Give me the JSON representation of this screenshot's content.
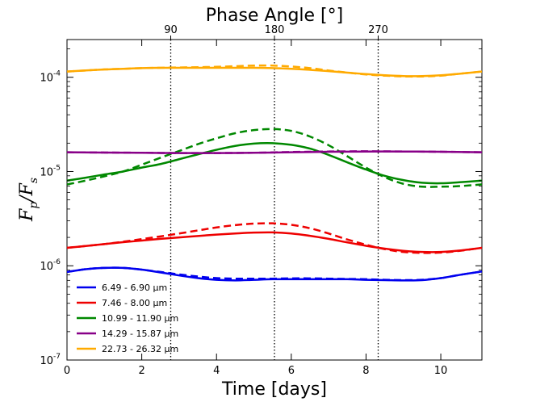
{
  "chart_data": {
    "type": "line",
    "title": "Phase Angle [°]",
    "xlabel": "Time [days]",
    "ylabel": "F_p / F_s",
    "ylabel_parts": {
      "main": "F",
      "sub1": "p",
      "sep": "/",
      "main2": "F",
      "sub2": "s"
    },
    "xlim": [
      0,
      11.1
    ],
    "ylim_log10": [
      -7,
      -3.6
    ],
    "yscale": "log",
    "x_ticks": [
      0,
      2,
      4,
      6,
      8,
      10
    ],
    "x_tick_labels": [
      "0",
      "2",
      "4",
      "6",
      "8",
      "10"
    ],
    "y_ticks_log10": [
      -7,
      -6,
      -5,
      -4
    ],
    "y_tick_labels": [
      {
        "base": "10",
        "exp": "-7"
      },
      {
        "base": "10",
        "exp": "-6"
      },
      {
        "base": "10",
        "exp": "-5"
      },
      {
        "base": "10",
        "exp": "-4"
      }
    ],
    "top_axis": {
      "ticks_days": [
        2.775,
        5.55,
        8.325
      ],
      "tick_labels": [
        "90",
        "180",
        "270"
      ]
    },
    "vlines_days": [
      2.775,
      5.55,
      8.325
    ],
    "legend_position": "lower-left",
    "series": [
      {
        "name": "6.49 - 6.90 μm",
        "color": "#0000ee",
        "solid": [
          [
            0,
            8.6e-07
          ],
          [
            0.5,
            9.2e-07
          ],
          [
            1,
            9.5e-07
          ],
          [
            1.5,
            9.5e-07
          ],
          [
            2,
            9.1e-07
          ],
          [
            2.5,
            8.5e-07
          ],
          [
            3,
            7.9e-07
          ],
          [
            3.5,
            7.4e-07
          ],
          [
            4,
            7.1e-07
          ],
          [
            4.5,
            7e-07
          ],
          [
            5,
            7.1e-07
          ],
          [
            5.5,
            7.2e-07
          ],
          [
            6,
            7.2e-07
          ],
          [
            6.5,
            7.2e-07
          ],
          [
            7,
            7.2e-07
          ],
          [
            7.5,
            7.2e-07
          ],
          [
            8,
            7.1e-07
          ],
          [
            8.5,
            7.05e-07
          ],
          [
            9,
            7e-07
          ],
          [
            9.5,
            7.05e-07
          ],
          [
            10,
            7.4e-07
          ],
          [
            10.5,
            8e-07
          ],
          [
            11.1,
            8.7e-07
          ]
        ],
        "dashed": [
          [
            0,
            8.6e-07
          ],
          [
            0.5,
            9.2e-07
          ],
          [
            1,
            9.5e-07
          ],
          [
            1.5,
            9.5e-07
          ],
          [
            2,
            9.1e-07
          ],
          [
            2.5,
            8.6e-07
          ],
          [
            3,
            8.1e-07
          ],
          [
            3.5,
            7.7e-07
          ],
          [
            4,
            7.4e-07
          ],
          [
            4.5,
            7.3e-07
          ],
          [
            5,
            7.3e-07
          ],
          [
            5.5,
            7.3e-07
          ],
          [
            6,
            7.35e-07
          ],
          [
            6.5,
            7.35e-07
          ],
          [
            7,
            7.3e-07
          ],
          [
            7.5,
            7.25e-07
          ],
          [
            8,
            7.2e-07
          ],
          [
            8.5,
            7.1e-07
          ],
          [
            9,
            7.05e-07
          ],
          [
            9.5,
            7.1e-07
          ],
          [
            10,
            7.4e-07
          ],
          [
            10.5,
            8e-07
          ],
          [
            11.1,
            8.7e-07
          ]
        ]
      },
      {
        "name": "7.46 - 8.00 μm",
        "color": "#ee0000",
        "solid": [
          [
            0,
            1.55e-06
          ],
          [
            0.5,
            1.62e-06
          ],
          [
            1,
            1.7e-06
          ],
          [
            1.5,
            1.78e-06
          ],
          [
            2,
            1.85e-06
          ],
          [
            2.5,
            1.93e-06
          ],
          [
            3,
            2e-06
          ],
          [
            3.5,
            2.07e-06
          ],
          [
            4,
            2.14e-06
          ],
          [
            4.5,
            2.2e-06
          ],
          [
            5,
            2.25e-06
          ],
          [
            5.5,
            2.26e-06
          ],
          [
            6,
            2.2e-06
          ],
          [
            6.5,
            2.08e-06
          ],
          [
            7,
            1.93e-06
          ],
          [
            7.5,
            1.77e-06
          ],
          [
            8,
            1.63e-06
          ],
          [
            8.5,
            1.52e-06
          ],
          [
            9,
            1.44e-06
          ],
          [
            9.5,
            1.4e-06
          ],
          [
            10,
            1.4e-06
          ],
          [
            10.5,
            1.45e-06
          ],
          [
            11.1,
            1.55e-06
          ]
        ],
        "dashed": [
          [
            0,
            1.55e-06
          ],
          [
            0.5,
            1.62e-06
          ],
          [
            1,
            1.7e-06
          ],
          [
            1.5,
            1.8e-06
          ],
          [
            2,
            1.92e-06
          ],
          [
            2.5,
            2.05e-06
          ],
          [
            3,
            2.2e-06
          ],
          [
            3.5,
            2.37e-06
          ],
          [
            4,
            2.55e-06
          ],
          [
            4.5,
            2.7e-06
          ],
          [
            5,
            2.8e-06
          ],
          [
            5.5,
            2.82e-06
          ],
          [
            6,
            2.72e-06
          ],
          [
            6.5,
            2.5e-06
          ],
          [
            7,
            2.2e-06
          ],
          [
            7.5,
            1.9e-06
          ],
          [
            8,
            1.67e-06
          ],
          [
            8.5,
            1.5e-06
          ],
          [
            9,
            1.4e-06
          ],
          [
            9.5,
            1.37e-06
          ],
          [
            10,
            1.38e-06
          ],
          [
            10.5,
            1.44e-06
          ],
          [
            11.1,
            1.55e-06
          ]
        ]
      },
      {
        "name": "10.99 - 11.90 μm",
        "color": "#008800",
        "solid": [
          [
            0,
            8e-06
          ],
          [
            0.5,
            8.6e-06
          ],
          [
            1,
            9.3e-06
          ],
          [
            1.5,
            1e-05
          ],
          [
            2,
            1.1e-05
          ],
          [
            2.5,
            1.2e-05
          ],
          [
            3,
            1.35e-05
          ],
          [
            3.5,
            1.52e-05
          ],
          [
            4,
            1.7e-05
          ],
          [
            4.5,
            1.87e-05
          ],
          [
            5,
            1.98e-05
          ],
          [
            5.5,
            2e-05
          ],
          [
            6,
            1.92e-05
          ],
          [
            6.5,
            1.75e-05
          ],
          [
            7,
            1.5e-05
          ],
          [
            7.5,
            1.25e-05
          ],
          [
            8,
            1.05e-05
          ],
          [
            8.5,
            9e-06
          ],
          [
            9,
            8.1e-06
          ],
          [
            9.5,
            7.6e-06
          ],
          [
            10,
            7.5e-06
          ],
          [
            10.5,
            7.7e-06
          ],
          [
            11.1,
            8e-06
          ]
        ],
        "dashed": [
          [
            0,
            7.3e-06
          ],
          [
            0.5,
            8e-06
          ],
          [
            1,
            8.9e-06
          ],
          [
            1.5,
            1e-05
          ],
          [
            2,
            1.18e-05
          ],
          [
            2.5,
            1.4e-05
          ],
          [
            3,
            1.65e-05
          ],
          [
            3.5,
            1.95e-05
          ],
          [
            4,
            2.25e-05
          ],
          [
            4.5,
            2.55e-05
          ],
          [
            5,
            2.75e-05
          ],
          [
            5.5,
            2.82e-05
          ],
          [
            6,
            2.7e-05
          ],
          [
            6.5,
            2.35e-05
          ],
          [
            7,
            1.9e-05
          ],
          [
            7.5,
            1.45e-05
          ],
          [
            8,
            1.1e-05
          ],
          [
            8.5,
            8.7e-06
          ],
          [
            9,
            7.4e-06
          ],
          [
            9.5,
            6.9e-06
          ],
          [
            10,
            6.9e-06
          ],
          [
            10.5,
            7e-06
          ],
          [
            11.1,
            7.3e-06
          ]
        ]
      },
      {
        "name": "14.29 - 15.87 μm",
        "color": "#880088",
        "solid": [
          [
            0,
            1.6e-05
          ],
          [
            1,
            1.59e-05
          ],
          [
            2,
            1.58e-05
          ],
          [
            3,
            1.57e-05
          ],
          [
            4,
            1.57e-05
          ],
          [
            5,
            1.58e-05
          ],
          [
            6,
            1.6e-05
          ],
          [
            7,
            1.62e-05
          ],
          [
            8,
            1.63e-05
          ],
          [
            9,
            1.63e-05
          ],
          [
            10,
            1.62e-05
          ],
          [
            11.1,
            1.6e-05
          ]
        ],
        "dashed": [
          [
            0,
            1.6e-05
          ],
          [
            1,
            1.59e-05
          ],
          [
            2,
            1.58e-05
          ],
          [
            3,
            1.57e-05
          ],
          [
            4,
            1.57e-05
          ],
          [
            5,
            1.58e-05
          ],
          [
            6,
            1.61e-05
          ],
          [
            7,
            1.63e-05
          ],
          [
            8,
            1.64e-05
          ],
          [
            9,
            1.63e-05
          ],
          [
            10,
            1.62e-05
          ],
          [
            11.1,
            1.6e-05
          ]
        ]
      },
      {
        "name": "22.73 - 26.32 μm",
        "color": "#ffaa00",
        "solid": [
          [
            0,
            0.000115
          ],
          [
            0.5,
            0.000118
          ],
          [
            1,
            0.000121
          ],
          [
            1.5,
            0.000123
          ],
          [
            2,
            0.000125
          ],
          [
            2.5,
            0.000126
          ],
          [
            3,
            0.000126
          ],
          [
            3.5,
            0.000126
          ],
          [
            4,
            0.000126
          ],
          [
            4.5,
            0.000126
          ],
          [
            5,
            0.000126
          ],
          [
            5.5,
            0.000125
          ],
          [
            6,
            0.000123
          ],
          [
            6.5,
            0.00012
          ],
          [
            7,
            0.000116
          ],
          [
            7.5,
            0.000112
          ],
          [
            8,
            0.000108
          ],
          [
            8.5,
            0.000105
          ],
          [
            9,
            0.000103
          ],
          [
            9.5,
            0.000103
          ],
          [
            10,
            0.000105
          ],
          [
            10.5,
            0.000109
          ],
          [
            11.1,
            0.000115
          ]
        ],
        "dashed": [
          [
            0,
            0.000115
          ],
          [
            0.5,
            0.000118
          ],
          [
            1,
            0.000121
          ],
          [
            1.5,
            0.000123
          ],
          [
            2,
            0.000125
          ],
          [
            2.5,
            0.000126
          ],
          [
            3,
            0.000127
          ],
          [
            3.5,
            0.000128
          ],
          [
            4,
            0.000129
          ],
          [
            4.5,
            0.000131
          ],
          [
            5,
            0.000133
          ],
          [
            5.5,
            0.000133
          ],
          [
            6,
            0.00013
          ],
          [
            6.5,
            0.000125
          ],
          [
            7,
            0.000118
          ],
          [
            7.5,
            0.000112
          ],
          [
            8,
            0.000107
          ],
          [
            8.5,
            0.000104
          ],
          [
            9,
            0.000102
          ],
          [
            9.5,
            0.000102
          ],
          [
            10,
            0.000104
          ],
          [
            10.5,
            0.000109
          ],
          [
            11.1,
            0.000115
          ]
        ]
      }
    ]
  }
}
